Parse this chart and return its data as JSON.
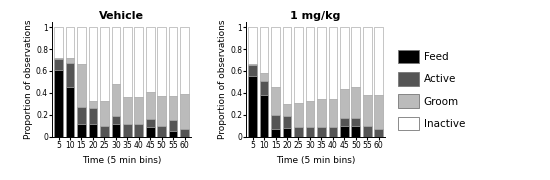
{
  "vehicle_title": "Vehicle",
  "drug_title": "1 mg/kg",
  "xlabel": "Time (5 min bins)",
  "ylabel": "Proportion of observations",
  "categories": [
    5,
    10,
    15,
    20,
    25,
    30,
    35,
    40,
    45,
    50,
    55,
    60
  ],
  "colors": {
    "Feed": "#000000",
    "Active": "#555555",
    "Groom": "#bbbbbb",
    "Inactive": "#ffffff"
  },
  "vehicle": {
    "Feed": [
      0.61,
      0.45,
      0.12,
      0.12,
      0.0,
      0.12,
      0.0,
      0.0,
      0.09,
      0.0,
      0.05,
      0.0
    ],
    "Active": [
      0.1,
      0.22,
      0.15,
      0.14,
      0.1,
      0.07,
      0.12,
      0.12,
      0.07,
      0.1,
      0.1,
      0.07
    ],
    "Groom": [
      0.01,
      0.05,
      0.39,
      0.07,
      0.23,
      0.29,
      0.24,
      0.24,
      0.25,
      0.27,
      0.22,
      0.32
    ],
    "Inactive": [
      0.28,
      0.28,
      0.34,
      0.67,
      0.67,
      0.52,
      0.64,
      0.64,
      0.59,
      0.63,
      0.63,
      0.61
    ]
  },
  "drug": {
    "Feed": [
      0.55,
      0.38,
      0.07,
      0.08,
      0.0,
      0.0,
      0.0,
      0.0,
      0.1,
      0.1,
      0.0,
      0.0
    ],
    "Active": [
      0.1,
      0.13,
      0.13,
      0.11,
      0.09,
      0.09,
      0.09,
      0.09,
      0.07,
      0.07,
      0.1,
      0.07
    ],
    "Groom": [
      0.01,
      0.07,
      0.25,
      0.11,
      0.22,
      0.24,
      0.25,
      0.25,
      0.27,
      0.28,
      0.28,
      0.31
    ],
    "Inactive": [
      0.34,
      0.42,
      0.55,
      0.7,
      0.69,
      0.67,
      0.66,
      0.66,
      0.56,
      0.55,
      0.62,
      0.62
    ]
  },
  "legend_labels": [
    "Feed",
    "Active",
    "Groom",
    "Inactive"
  ],
  "bar_edge_color": "#999999",
  "bar_width": 0.75
}
